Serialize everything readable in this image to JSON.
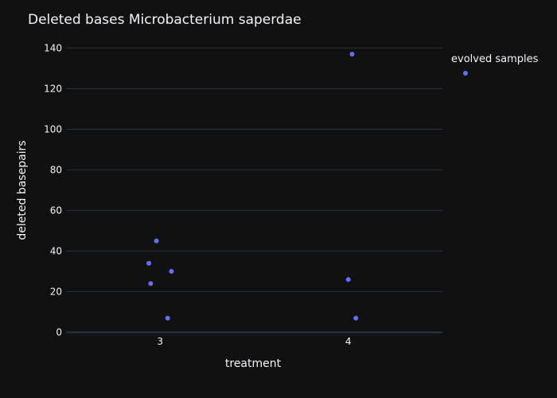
{
  "chart_data": {
    "type": "scatter",
    "title": "Deleted bases Microbacterium saperdae",
    "xlabel": "treatment",
    "ylabel": "deleted basepairs",
    "x_ticks": [
      "3",
      "4"
    ],
    "y_ticks": [
      "0",
      "20",
      "40",
      "60",
      "80",
      "100",
      "120",
      "140"
    ],
    "xlim": [
      2.5,
      4.5
    ],
    "ylim": [
      -1,
      146
    ],
    "grid": true,
    "legend_position": "top-right",
    "series": [
      {
        "name": "evolved samples",
        "color": "#636efa",
        "points": [
          {
            "x": 3,
            "jitter": -0.06,
            "y": 34
          },
          {
            "x": 3,
            "jitter": -0.02,
            "y": 45
          },
          {
            "x": 3,
            "jitter": -0.05,
            "y": 24
          },
          {
            "x": 3,
            "jitter": 0.06,
            "y": 30
          },
          {
            "x": 3,
            "jitter": 0.04,
            "y": 7
          },
          {
            "x": 4,
            "jitter": 0.02,
            "y": 137
          },
          {
            "x": 4,
            "jitter": 0.0,
            "y": 26
          },
          {
            "x": 4,
            "jitter": 0.04,
            "y": 7
          }
        ]
      }
    ]
  }
}
